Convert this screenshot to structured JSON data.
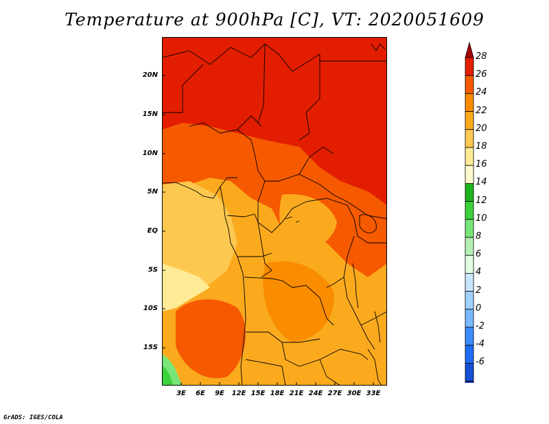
{
  "title": "Temperature at 900hPa [C], VT: 2020051609",
  "credit": "GrADS: IGES/COLA",
  "map": {
    "variable": "Temperature",
    "level": "900hPa",
    "units": "C",
    "valid_time": "2020051609",
    "lat_ticks": [
      "20N",
      "15N",
      "10N",
      "5N",
      "EQ",
      "5S",
      "10S",
      "15S"
    ],
    "lon_ticks": [
      "3E",
      "6E",
      "9E",
      "12E",
      "15E",
      "18E",
      "21E",
      "24E",
      "27E",
      "30E",
      "33E"
    ]
  },
  "colorbar": {
    "labels": [
      "28",
      "26",
      "24",
      "22",
      "20",
      "18",
      "16",
      "14",
      "12",
      "10",
      "8",
      "6",
      "4",
      "2",
      "0",
      "-2",
      "-4",
      "-6"
    ],
    "colors": [
      "#a50000",
      "#e31e00",
      "#f55a00",
      "#fa8c00",
      "#fbaa1e",
      "#fdc850",
      "#ffeb96",
      "#fffacd",
      "#1eb41e",
      "#3cd23c",
      "#78e678",
      "#b4f0b4",
      "#e1ffe1",
      "#c8e6ff",
      "#a0d2ff",
      "#78b9ff",
      "#3c8cff",
      "#1e6ef5",
      "#1450d2",
      "#0a32b4",
      "#000096",
      "#e6e6ff"
    ]
  }
}
